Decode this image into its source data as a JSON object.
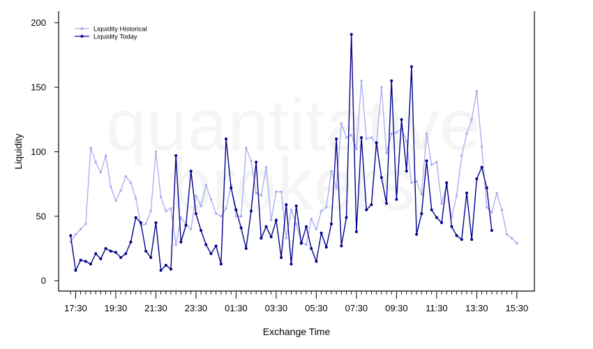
{
  "chart_data": {
    "type": "line",
    "xlabel": "Exchange Time",
    "ylabel": "Liquidity",
    "ylim": [
      -8,
      209
    ],
    "yticks": [
      0,
      50,
      100,
      150,
      200
    ],
    "xtick_labels": [
      "17:30",
      "19:30",
      "21:30",
      "23:30",
      "01:30",
      "03:30",
      "05:30",
      "07:30",
      "09:30",
      "11:30",
      "13:30",
      "15:30"
    ],
    "xtick_indices": [
      1,
      9,
      17,
      25,
      33,
      41,
      49,
      57,
      65,
      73,
      81,
      89
    ],
    "xlim_index": [
      -2.4,
      92.5
    ],
    "minor_tick_step": 1,
    "watermark": [
      "quantitative",
      "brokers"
    ],
    "legend_position": "top-left",
    "grid": false,
    "series": [
      {
        "name": "Liquidity Historical",
        "color": "#a9a9f2",
        "values": [
          30,
          36,
          40,
          44,
          103,
          92,
          84,
          97,
          73,
          62,
          70,
          81,
          76,
          64,
          43,
          44,
          54,
          100,
          65,
          54,
          56,
          28,
          49,
          44,
          40,
          66,
          58,
          74,
          63,
          52,
          50,
          56,
          74,
          50,
          50,
          103,
          93,
          68,
          66,
          88,
          47,
          69,
          69,
          33,
          55,
          44,
          30,
          28,
          48,
          40,
          54,
          57,
          85,
          72,
          122,
          111,
          113,
          102,
          155,
          110,
          111,
          106,
          150,
          99,
          114,
          115,
          118,
          108,
          76,
          77,
          67,
          114,
          90,
          92,
          60,
          74,
          49,
          66,
          97,
          114,
          125,
          147,
          104,
          57,
          53,
          68,
          55,
          36,
          33,
          29
        ]
      },
      {
        "name": "Liquidity Today",
        "color": "#00008b",
        "values": [
          35,
          8,
          16,
          15,
          13,
          21,
          17,
          25,
          23,
          22,
          18,
          21,
          30,
          49,
          45,
          23,
          18,
          45,
          8,
          12,
          9,
          97,
          30,
          43,
          85,
          52,
          39,
          28,
          21,
          27,
          13,
          110,
          72,
          55,
          41,
          25,
          54,
          92,
          33,
          42,
          34,
          47,
          18,
          59,
          13,
          58,
          29,
          42,
          25,
          15,
          37,
          26,
          44,
          110,
          27,
          49,
          191,
          38,
          111,
          55,
          59,
          107,
          80,
          60,
          155,
          63,
          125,
          85,
          166,
          36,
          52,
          93,
          55,
          49,
          45,
          76,
          42,
          35,
          32,
          68,
          32,
          79,
          88,
          72,
          39
        ]
      }
    ]
  }
}
